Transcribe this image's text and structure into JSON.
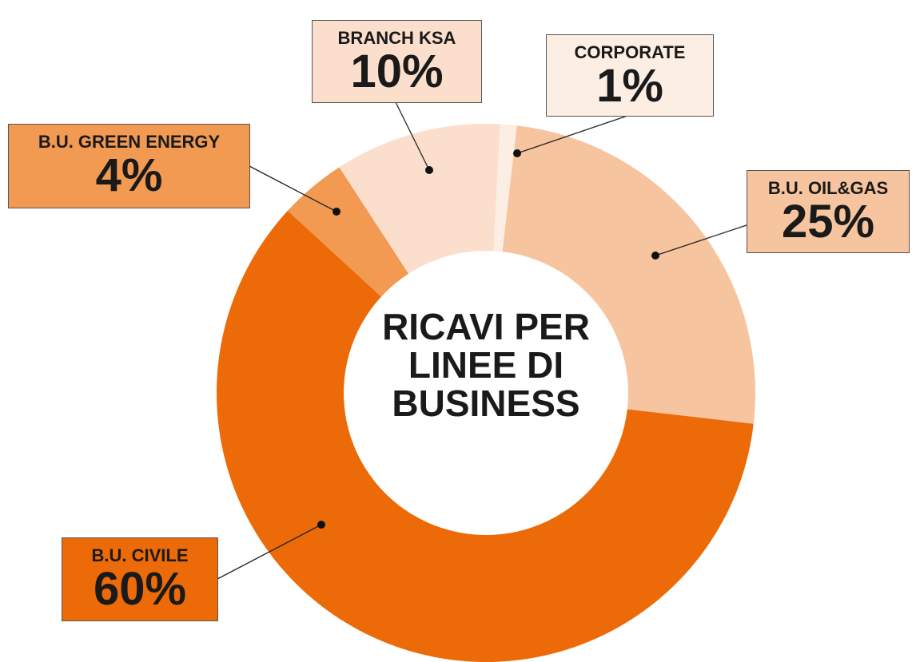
{
  "chart_data": {
    "type": "donut",
    "title": "RICAVI PER LINEE DI BUSINESS",
    "categories": [
      "CORPORATE",
      "B.U. OIL&GAS",
      "B.U. CIVILE",
      "B.U. GREEN ENERGY",
      "BRANCH KSA"
    ],
    "values": [
      1,
      25,
      60,
      4,
      10
    ],
    "value_labels": [
      "1%",
      "25%",
      "60%",
      "4%",
      "10%"
    ],
    "colors": [
      "#fdeee4",
      "#f6c49f",
      "#ec6a07",
      "#f29a52",
      "#fbdfcc"
    ]
  }
}
